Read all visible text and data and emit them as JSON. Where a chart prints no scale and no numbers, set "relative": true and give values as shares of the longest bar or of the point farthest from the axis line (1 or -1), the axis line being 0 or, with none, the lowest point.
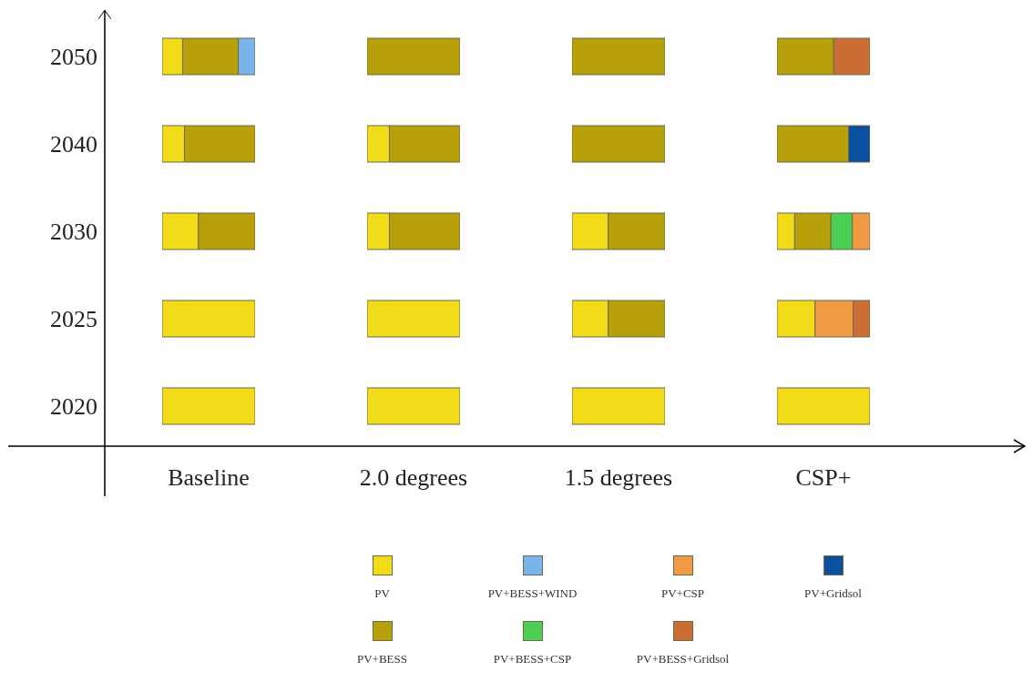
{
  "chart_data": [
    {
      "type": "bar",
      "orientation": "horizontal",
      "stacked": true,
      "relative": true,
      "xlabel": "Baseline",
      "categories": [
        "2050",
        "2040",
        "2030",
        "2025",
        "2020"
      ],
      "tick_labels": "y",
      "legend": "bottom",
      "series": [
        {
          "name": "PV",
          "color": "#f2dc1a",
          "values": [
            0.22,
            0.24,
            0.39,
            1,
            1
          ]
        },
        {
          "name": "PV+BESS",
          "color": "#b8a00a",
          "values": [
            0.6,
            0.76,
            0.61,
            null,
            null
          ]
        },
        {
          "name": "PV+BESS+WIND",
          "color": "#7ab4ec",
          "values": [
            0.18,
            null,
            null,
            null,
            null
          ]
        }
      ]
    },
    {
      "type": "bar",
      "orientation": "horizontal",
      "stacked": true,
      "relative": true,
      "xlabel": "2.0 degrees",
      "categories": [
        "2050",
        "2040",
        "2030",
        "2025",
        "2020"
      ],
      "tick_labels": false,
      "series": [
        {
          "color": "#f2dc1a",
          "values": [
            null,
            0.24,
            0.24,
            1,
            1
          ]
        },
        {
          "color": "#b8a00a",
          "values": [
            1,
            0.76,
            0.76,
            null,
            null
          ]
        }
      ]
    },
    {
      "type": "bar",
      "orientation": "horizontal",
      "stacked": true,
      "relative": true,
      "xlabel": "1.5 degrees",
      "categories": [
        "2050",
        "2040",
        "2030",
        "2025",
        "2020"
      ],
      "tick_labels": false,
      "series": [
        {
          "color": "#f2dc1a",
          "values": [
            null,
            null,
            0.39,
            0.39,
            1
          ]
        },
        {
          "color": "#b8a00a",
          "values": [
            1,
            1,
            0.61,
            0.61,
            null
          ]
        }
      ]
    },
    {
      "type": "bar",
      "orientation": "horizontal",
      "stacked": true,
      "relative": true,
      "xlabel": "CSP+",
      "categories": [
        "2050",
        "2040",
        "2030",
        "2025",
        "2020"
      ],
      "tick_labels": false,
      "legend": "bottom",
      "series": [
        {
          "color": "#f2dc1a",
          "values": [
            null,
            null,
            0.19,
            0.41,
            1
          ]
        },
        {
          "color": "#b8a00a",
          "values": [
            0.61,
            0.77,
            0.39,
            null,
            null
          ]
        },
        {
          "name": "PV+BESS+CSP",
          "color": "#4ccf55",
          "values": [
            null,
            null,
            0.23,
            null,
            null
          ]
        },
        {
          "name": "PV+CSP",
          "color": "#f09a44",
          "values": [
            null,
            null,
            0.19,
            0.41,
            null
          ]
        },
        {
          "name": "PV+BESS+Gridsol",
          "color": "#cc6e34",
          "values": [
            0.39,
            null,
            null,
            0.18,
            null
          ]
        },
        {
          "name": "PV+Gridsol",
          "color": "#0a4fa0",
          "values": [
            null,
            0.23,
            null,
            null,
            null
          ]
        }
      ]
    }
  ]
}
